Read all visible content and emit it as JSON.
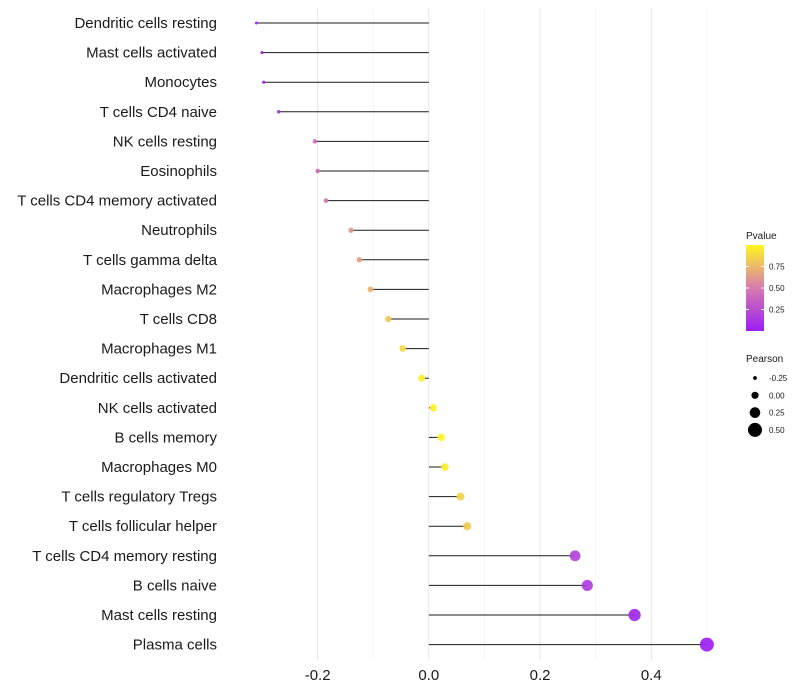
{
  "chart_data": {
    "type": "lollipop",
    "categories": [
      "Dendritic cells resting",
      "Mast cells activated",
      "Monocytes",
      "T cells CD4 naive",
      "NK cells resting",
      "Eosinophils",
      "T cells CD4 memory activated",
      "Neutrophils",
      "T cells gamma delta",
      "Macrophages M2",
      "T cells CD8",
      "Macrophages M1",
      "Dendritic cells activated",
      "NK cells activated",
      "B cells memory",
      "Macrophages M0",
      "T cells regulatory  Tregs ",
      "T cells follicular helper",
      "T cells CD4 memory resting",
      "B cells naive",
      "Mast cells resting",
      "Plasma cells"
    ],
    "pearson": [
      -0.31,
      -0.3,
      -0.297,
      -0.27,
      -0.205,
      -0.2,
      -0.185,
      -0.14,
      -0.125,
      -0.105,
      -0.073,
      -0.047,
      -0.013,
      0.008,
      0.022,
      0.029,
      0.057,
      0.069,
      0.263,
      0.285,
      0.37,
      0.5
    ],
    "pvalue": [
      0.02,
      0.02,
      0.02,
      0.12,
      0.42,
      0.42,
      0.48,
      0.62,
      0.65,
      0.72,
      0.82,
      0.88,
      0.97,
      0.98,
      0.98,
      0.96,
      0.86,
      0.82,
      0.2,
      0.16,
      0.05,
      0.01
    ],
    "x_ticks": [
      "-0.2",
      "0.0",
      "0.2",
      "0.4"
    ],
    "x_tick_values": [
      -0.2,
      0.0,
      0.2,
      0.4
    ],
    "xlim": [
      -0.354,
      0.52
    ],
    "xlabel": "",
    "ylabel": "",
    "grid": true,
    "legends": {
      "color": {
        "title": "Pvalue",
        "ticks": [
          "0.75",
          "0.50",
          "0.25"
        ],
        "tick_values": [
          0.75,
          0.5,
          0.25
        ],
        "range": [
          0,
          1
        ],
        "low_color": "#9B1FF2",
        "mid_color": "#D77BB0",
        "high_color": "#FFF721"
      },
      "size": {
        "title": "Pearson",
        "ticks": [
          "-0.25",
          "0.00",
          "0.25",
          "0.50"
        ],
        "tick_values": [
          -0.25,
          0.0,
          0.25,
          0.5
        ]
      }
    }
  }
}
